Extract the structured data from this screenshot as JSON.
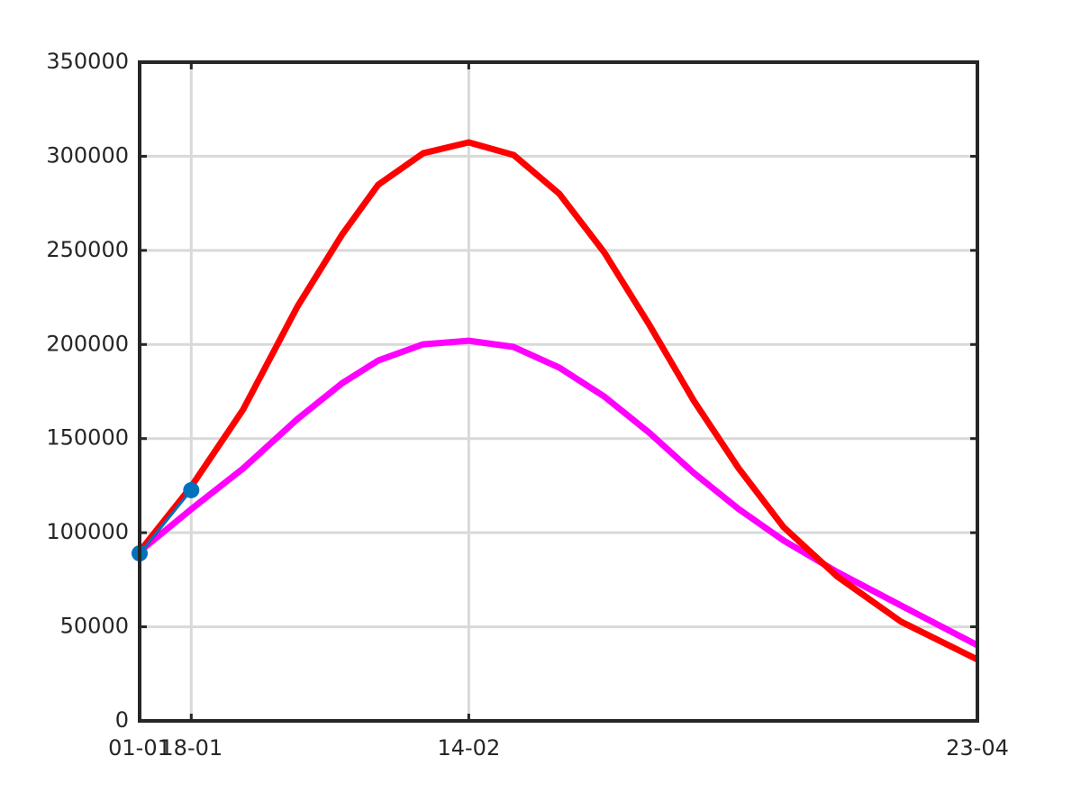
{
  "chart_data": {
    "type": "line",
    "xlim": [
      0,
      112
    ],
    "xticks": [
      {
        "value": 0,
        "label": "01-01"
      },
      {
        "value": 6.9,
        "label": "18-01"
      },
      {
        "value": 44,
        "label": "14-02"
      },
      {
        "value": 112,
        "label": "23-04"
      }
    ],
    "ylim": [
      0,
      350000
    ],
    "yticks": [
      0,
      50000,
      100000,
      150000,
      200000,
      250000,
      300000,
      350000
    ],
    "grid": true,
    "series": [
      {
        "color": "#ff00ff",
        "markers": false,
        "x": [
          0,
          6.9,
          13.8,
          21.1,
          27.1,
          31.9,
          37.9,
          44,
          50,
          56.1,
          62.1,
          68.1,
          74.1,
          80.1,
          86.1,
          93.3,
          101.8,
          112
        ],
        "values": [
          90000,
          112500,
          134000,
          160400,
          179500,
          191500,
          200100,
          202000,
          198700,
          187700,
          172400,
          153200,
          131700,
          112500,
          95800,
          79000,
          61300,
          40200
        ]
      },
      {
        "color": "#ff0000",
        "markers": false,
        "x": [
          0,
          6.9,
          13.8,
          21.1,
          27.1,
          31.9,
          37.9,
          44,
          50,
          56.1,
          62.1,
          68.1,
          74.1,
          80.1,
          86.1,
          93.3,
          101.8,
          112
        ],
        "values": [
          90000,
          124500,
          165200,
          220200,
          258600,
          284900,
          301600,
          307400,
          300700,
          280100,
          249000,
          210700,
          170000,
          134100,
          102900,
          76600,
          52700,
          32600
        ]
      },
      {
        "color": "#0072bd",
        "markers": true,
        "x": [
          0,
          6.9
        ],
        "values": [
          89000,
          122600
        ]
      }
    ]
  }
}
